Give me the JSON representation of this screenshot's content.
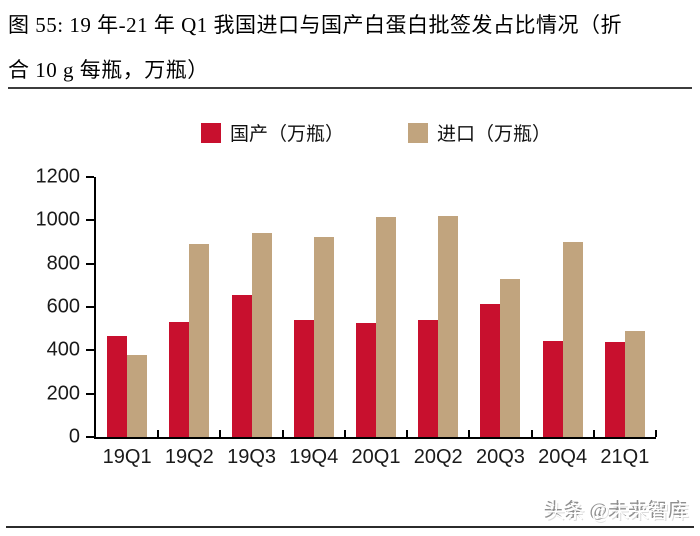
{
  "figure": {
    "title_line1": "图 55: 19 年-21 年 Q1 我国进口与国产白蛋白批签发占比情况（折",
    "title_line2": "合 10 g 每瓶，万瓶）"
  },
  "watermark": "头条 @未来智库",
  "colors": {
    "domestic_red": "#c8102e",
    "import_tan": "#c1a47e",
    "axis": "#000000",
    "top_rule": "#3c3c3c",
    "bottom_rule": "#2b2b2b"
  },
  "chart_data": {
    "type": "bar",
    "title": "19年-21年Q1 我国进口与国产白蛋白批签发占比情况（折合10 g每瓶，万瓶）",
    "categories": [
      "19Q1",
      "19Q2",
      "19Q3",
      "19Q4",
      "20Q1",
      "20Q2",
      "20Q3",
      "20Q4",
      "21Q1"
    ],
    "series": [
      {
        "name": "国产（万瓶）",
        "key": "domestic",
        "color": "#c8102e",
        "values": [
          465,
          530,
          655,
          540,
          525,
          540,
          615,
          445,
          440
        ]
      },
      {
        "name": "进口（万瓶）",
        "key": "import",
        "color": "#c1a47e",
        "values": [
          380,
          890,
          940,
          925,
          1015,
          1020,
          730,
          900,
          490
        ]
      }
    ],
    "xlabel": "",
    "ylabel": "",
    "ylim": [
      0,
      1200
    ],
    "yticks": [
      0,
      200,
      400,
      600,
      800,
      1000,
      1200
    ],
    "legend_position": "top",
    "grid": false
  }
}
